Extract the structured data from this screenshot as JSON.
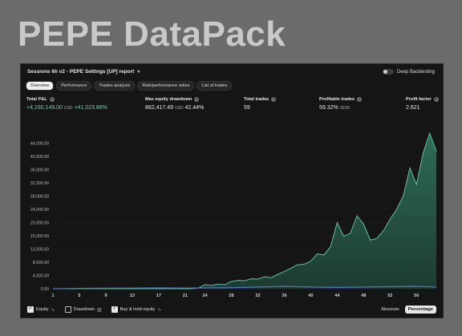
{
  "banner": {
    "title": "PEPE DataPack"
  },
  "header": {
    "report_title": "Sessions 6h v2 - PEPE Settings [UP] report",
    "deep_backtesting_label": "Deep Backtesting"
  },
  "tabs": [
    {
      "label": "Overview",
      "active": true
    },
    {
      "label": "Performance",
      "active": false
    },
    {
      "label": "Trades analysis",
      "active": false
    },
    {
      "label": "Risk/performance ratios",
      "active": false
    },
    {
      "label": "List of trades",
      "active": false
    }
  ],
  "stats": {
    "total_pnl": {
      "label": "Total P&L",
      "value": "+4,160,149.00",
      "unit": "USD",
      "pct": "+41,023.86%"
    },
    "max_dd": {
      "label": "Max equity drawdown",
      "value": "882,417.49",
      "unit": "USD",
      "pct": "42.44%"
    },
    "total_trades": {
      "label": "Total trades",
      "value": "59"
    },
    "profitable": {
      "label": "Profitable trades",
      "value": "59.32%",
      "sub": "35/59"
    },
    "profit_factor": {
      "label": "Profit factor",
      "value": "2.621"
    }
  },
  "chart_data": {
    "type": "area",
    "y_ticks": [
      "0.00",
      "4,000.00",
      "8,000.00",
      "12,000.00",
      "16,000.00",
      "20,000.00",
      "24,000.00",
      "28,000.00",
      "32,000.00",
      "36,000.00",
      "40,000.00",
      "44,000.00"
    ],
    "ylim": [
      0,
      48000
    ],
    "x_ticks": [
      "1",
      "5",
      "9",
      "13",
      "17",
      "21",
      "24",
      "28",
      "32",
      "36",
      "40",
      "44",
      "48",
      "52",
      "56"
    ],
    "xlim": [
      1,
      59
    ],
    "colors": {
      "equity_fill": "#2f6f5c",
      "equity_line": "#5ec3a0",
      "buyhold_line": "#4a78d0"
    },
    "series": [
      {
        "name": "Equity",
        "x": [
          1,
          5,
          9,
          13,
          17,
          21,
          22,
          23,
          24,
          25,
          26,
          27,
          28,
          29,
          30,
          31,
          32,
          33,
          34,
          35,
          36,
          37,
          38,
          39,
          40,
          41,
          42,
          43,
          44,
          45,
          46,
          47,
          48,
          49,
          50,
          51,
          52,
          53,
          54,
          55,
          56,
          57,
          58,
          59
        ],
        "values": [
          0,
          0,
          0,
          0,
          0,
          0,
          0,
          200,
          1200,
          1000,
          1400,
          1200,
          2200,
          2500,
          2400,
          3000,
          2900,
          3600,
          3300,
          4300,
          5200,
          6200,
          7200,
          7400,
          8300,
          10500,
          10200,
          12700,
          20000,
          15800,
          16800,
          22000,
          19500,
          14700,
          15200,
          17500,
          21000,
          24000,
          28000,
          36500,
          31500,
          41000,
          47000,
          41500
        ]
      },
      {
        "name": "Buy & hold equity",
        "x": [
          1,
          5,
          9,
          13,
          17,
          21,
          24,
          28,
          32,
          36,
          40,
          44,
          48,
          52,
          56,
          59
        ],
        "values": [
          0,
          100,
          150,
          200,
          250,
          200,
          250,
          300,
          500,
          700,
          500,
          400,
          500,
          600,
          700,
          500
        ]
      }
    ]
  },
  "legend": {
    "equity": "Equity",
    "drawdown": "Drawdown",
    "buyhold": "Buy & hold equity"
  },
  "scale": {
    "absolute": "Absolute",
    "percentage": "Percentage"
  }
}
